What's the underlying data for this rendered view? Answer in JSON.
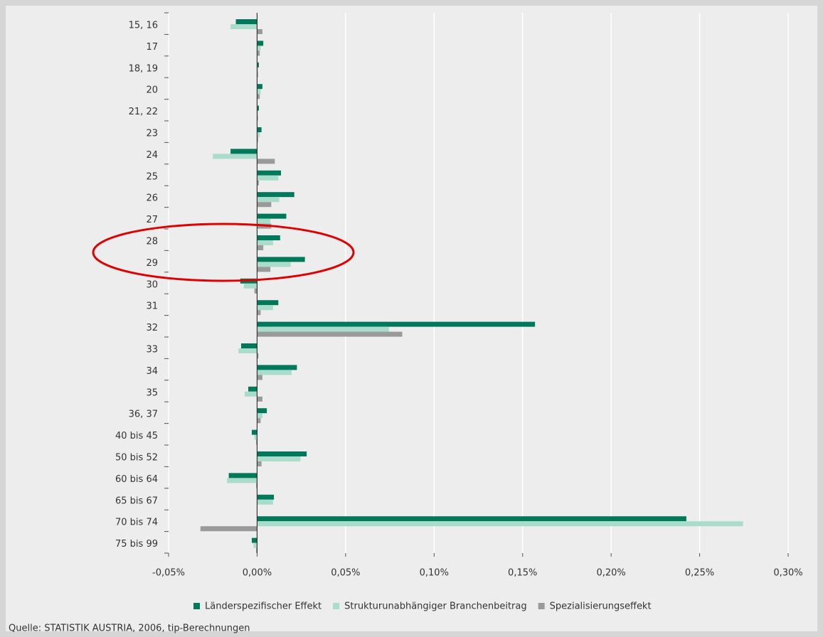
{
  "chart_data": {
    "type": "bar",
    "orientation": "horizontal",
    "categories": [
      "15, 16",
      "17",
      "18, 19",
      "20",
      "21, 22",
      "23",
      "24",
      "25",
      "26",
      "27",
      "28",
      "29",
      "30",
      "31",
      "32",
      "33",
      "34",
      "35",
      "36, 37",
      "40 bis 45",
      "50 bis 52",
      "60 bis 64",
      "65 bis 67",
      "70 bis 74",
      "75 bis 99"
    ],
    "series": [
      {
        "name": "Länderspezifischer Effekt",
        "color": "#00785a",
        "values": [
          -0.012,
          0.0035,
          0.001,
          0.003,
          0.001,
          0.0025,
          -0.015,
          0.0135,
          0.021,
          0.0165,
          0.013,
          0.027,
          -0.0095,
          0.012,
          0.157,
          -0.009,
          0.0225,
          -0.005,
          0.0055,
          -0.003,
          0.028,
          -0.016,
          0.0095,
          0.2425,
          -0.003
        ]
      },
      {
        "name": "Strukturunabhängiger Branchenbeitrag",
        "color": "#a9dccb",
        "values": [
          -0.015,
          0.002,
          0.0005,
          0.002,
          0.0005,
          0.0015,
          -0.025,
          0.012,
          0.0125,
          0.0075,
          0.009,
          0.019,
          -0.0075,
          0.009,
          0.0745,
          -0.0105,
          0.0195,
          -0.007,
          0.003,
          -0.0015,
          0.0245,
          -0.017,
          0.009,
          0.2745,
          -0.002
        ]
      },
      {
        "name": "Spezialisierungseffekt",
        "color": "#9a9a9a",
        "values": [
          0.003,
          0.0015,
          0.0005,
          0.0015,
          0.0005,
          0.0005,
          0.01,
          0.001,
          0.008,
          0.008,
          0.0035,
          0.0075,
          -0.0015,
          0.002,
          0.082,
          0.0008,
          0.003,
          0.003,
          0.002,
          -0.0005,
          0.0025,
          -0.0005,
          0,
          -0.032,
          -0.0005
        ]
      }
    ],
    "xlim": [
      -0.05,
      0.3
    ],
    "xticks": [
      {
        "value": -0.05,
        "label": "-0,05%"
      },
      {
        "value": 0,
        "label": "0,00%"
      },
      {
        "value": 0.05,
        "label": "0,05%"
      },
      {
        "value": 0.1,
        "label": "0,10%"
      },
      {
        "value": 0.15,
        "label": "0,15%"
      },
      {
        "value": 0.2,
        "label": "0,20%"
      },
      {
        "value": 0.25,
        "label": "0,25%"
      },
      {
        "value": 0.3,
        "label": "0,30%"
      }
    ],
    "grid": true,
    "legend": "bottom",
    "source": "Quelle: STATISTIK AUSTRIA, 2006, tip-Berechnungen"
  }
}
